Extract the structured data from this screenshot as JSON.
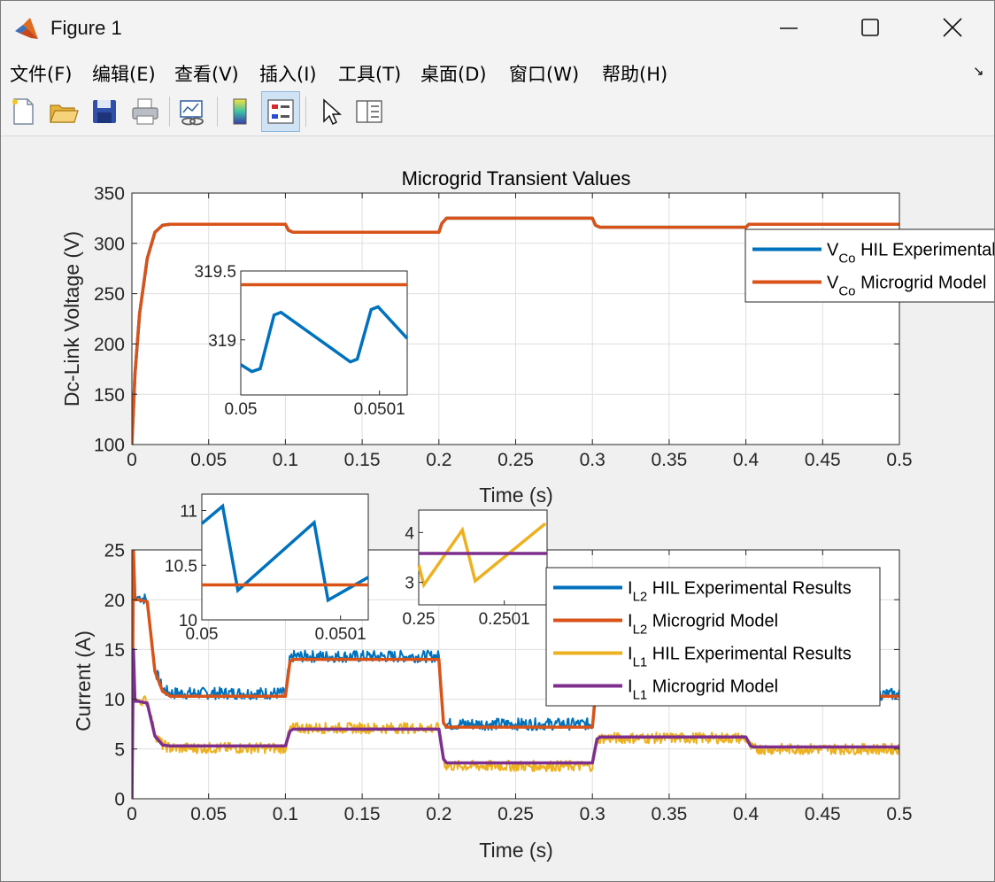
{
  "window": {
    "title": "Figure 1"
  },
  "menu": [
    "文件(F)",
    "编辑(E)",
    "查看(V)",
    "插入(I)",
    "工具(T)",
    "桌面(D)",
    "窗口(W)",
    "帮助(H)"
  ],
  "toolbar_icons": [
    "new-figure-icon",
    "open-file-icon",
    "save-icon",
    "print-icon",
    "link-plot-icon",
    "insert-colorbar-icon",
    "insert-legend-icon",
    "edit-plot-arrow-icon",
    "property-inspector-icon"
  ],
  "colors": {
    "blue": "#0072bd",
    "orange": "#d95319",
    "yellow": "#edb120",
    "purple": "#7e2f8e"
  },
  "chart_data": [
    {
      "type": "line",
      "title": "Microgrid Transient Values",
      "xlabel": "Time (s)",
      "ylabel": "Dc-Link Voltage (V)",
      "xlim": [
        0,
        0.5
      ],
      "ylim": [
        100,
        350
      ],
      "xticks": [
        0,
        0.05,
        0.1,
        0.15,
        0.2,
        0.25,
        0.3,
        0.35,
        0.4,
        0.45,
        0.5
      ],
      "xtick_labels": [
        "0",
        "0.05",
        "0.1",
        "0.15",
        "0.2",
        "0.25",
        "0.3",
        "0.35",
        "0.4",
        "0.45",
        "0.5"
      ],
      "yticks": [
        100,
        150,
        200,
        250,
        300,
        350
      ],
      "ytick_labels": [
        "100",
        "150",
        "200",
        "250",
        "300",
        "350"
      ],
      "grid": true,
      "series": [
        {
          "name": "V_Co HIL Experimental Results",
          "color": "#0072bd",
          "x": [
            0,
            0.002,
            0.005,
            0.01,
            0.015,
            0.02,
            0.025,
            0.03,
            0.05,
            0.1,
            0.102,
            0.105,
            0.15,
            0.2,
            0.202,
            0.205,
            0.25,
            0.3,
            0.302,
            0.305,
            0.35,
            0.4,
            0.402,
            0.405,
            0.45,
            0.5
          ],
          "y": [
            100,
            170,
            230,
            285,
            311,
            318,
            319,
            319,
            319,
            319,
            313,
            311,
            311,
            311,
            320,
            325,
            325,
            325,
            318,
            316,
            316,
            316,
            319,
            319,
            319,
            319
          ]
        },
        {
          "name": "V_Co Microgrid Model",
          "color": "#d95319",
          "x": [
            0,
            0.002,
            0.005,
            0.01,
            0.015,
            0.02,
            0.025,
            0.03,
            0.05,
            0.1,
            0.102,
            0.105,
            0.15,
            0.2,
            0.202,
            0.205,
            0.25,
            0.3,
            0.302,
            0.305,
            0.35,
            0.4,
            0.402,
            0.405,
            0.45,
            0.5
          ],
          "y": [
            100,
            170,
            230,
            285,
            311,
            318,
            319,
            319,
            319,
            319,
            313,
            311,
            311,
            311,
            320,
            325,
            325,
            325,
            318,
            316,
            316,
            316,
            319,
            319,
            319,
            319
          ]
        }
      ],
      "legend": {
        "location": "right",
        "entries": [
          {
            "main": "V",
            "sub": "Co",
            "rest": " HIL Experimental Results",
            "color": "#0072bd"
          },
          {
            "main": "V",
            "sub": "Co",
            "rest": " Microgrid Model",
            "color": "#d95319"
          }
        ]
      },
      "inset": {
        "xlim": [
          0.05,
          0.05012
        ],
        "ylim": [
          318.6,
          319.5
        ],
        "xtick_labels": [
          "0.05",
          "0.0501"
        ],
        "xticks": [
          0.05,
          0.0501
        ],
        "ytick_labels": [
          "319",
          "319.5"
        ],
        "yticks": [
          319,
          319.5
        ],
        "series": [
          {
            "name": "HIL",
            "color": "#0072bd",
            "x": [
              0.05,
              0.050008,
              0.050014,
              0.050024,
              0.050029,
              0.050079,
              0.050084,
              0.050094,
              0.050099,
              0.05012
            ],
            "y": [
              318.82,
              318.77,
              318.79,
              319.18,
              319.2,
              318.84,
              318.86,
              319.22,
              319.24,
              319.01
            ]
          },
          {
            "name": "Model",
            "color": "#d95319",
            "x": [
              0.05,
              0.05012
            ],
            "y": [
              319.4,
              319.4
            ]
          }
        ]
      }
    },
    {
      "type": "line",
      "xlabel": "Time (s)",
      "ylabel": "Current (A)",
      "xlim": [
        0,
        0.5
      ],
      "ylim": [
        0,
        25
      ],
      "xticks": [
        0,
        0.05,
        0.1,
        0.15,
        0.2,
        0.25,
        0.3,
        0.35,
        0.4,
        0.45,
        0.5
      ],
      "xtick_labels": [
        "0",
        "0.05",
        "0.1",
        "0.15",
        "0.2",
        "0.25",
        "0.3",
        "0.35",
        "0.4",
        "0.45",
        "0.5"
      ],
      "yticks": [
        0,
        5,
        10,
        15,
        20,
        25
      ],
      "ytick_labels": [
        "0",
        "5",
        "10",
        "15",
        "20",
        "25"
      ],
      "grid": true,
      "series": [
        {
          "name": "I_L2 HIL Experimental Results",
          "color": "#0072bd",
          "noise": 0.6,
          "x": [
            0,
            0.001,
            0.002,
            0.004,
            0.01,
            0.015,
            0.02,
            0.025,
            0.1,
            0.103,
            0.105,
            0.2,
            0.203,
            0.205,
            0.3,
            0.303,
            0.305,
            0.4,
            0.403,
            0.405,
            0.5
          ],
          "y": [
            0,
            25,
            20,
            20.3,
            20,
            13,
            11,
            10.6,
            10.6,
            14,
            14.3,
            14.3,
            8,
            7.5,
            7.5,
            12,
            12.4,
            12.4,
            10.5,
            10.5,
            10.5
          ]
        },
        {
          "name": "I_L2 Microgrid Model",
          "color": "#d95319",
          "x": [
            0,
            0.001,
            0.002,
            0.004,
            0.01,
            0.015,
            0.02,
            0.025,
            0.1,
            0.103,
            0.105,
            0.2,
            0.203,
            0.205,
            0.3,
            0.303,
            0.305,
            0.4,
            0.403,
            0.405,
            0.5
          ],
          "y": [
            0,
            25,
            20,
            20,
            19.8,
            12.8,
            10.8,
            10.3,
            10.3,
            13.8,
            14,
            14,
            7.6,
            7.2,
            7.2,
            12,
            12.2,
            12.2,
            10.4,
            10.3,
            10.3
          ]
        },
        {
          "name": "I_L1 HIL Experimental Results",
          "color": "#edb120",
          "noise": 0.55,
          "x": [
            0,
            0.001,
            0.002,
            0.004,
            0.01,
            0.015,
            0.02,
            0.025,
            0.1,
            0.103,
            0.105,
            0.2,
            0.203,
            0.205,
            0.3,
            0.303,
            0.305,
            0.4,
            0.403,
            0.405,
            0.5
          ],
          "y": [
            0,
            15,
            9.8,
            10,
            9.8,
            6.5,
            5.4,
            5.1,
            5.1,
            7,
            7.1,
            7.1,
            3.8,
            3.3,
            3.3,
            5.9,
            6.1,
            6.1,
            5.2,
            5,
            5
          ]
        },
        {
          "name": "I_L1 Microgrid Model",
          "color": "#7e2f8e",
          "x": [
            0,
            0.001,
            0.002,
            0.004,
            0.01,
            0.015,
            0.02,
            0.025,
            0.1,
            0.103,
            0.105,
            0.2,
            0.203,
            0.205,
            0.3,
            0.303,
            0.305,
            0.4,
            0.403,
            0.405,
            0.5
          ],
          "y": [
            0,
            15,
            9.8,
            9.8,
            9.6,
            6.3,
            5.4,
            5.3,
            5.3,
            6.8,
            7,
            7,
            4,
            3.6,
            3.6,
            6,
            6.2,
            6.2,
            5.3,
            5.2,
            5.2
          ]
        }
      ],
      "legend": {
        "location": "top-right",
        "entries": [
          {
            "main": "I",
            "sub": "L2",
            "rest": " HIL Experimental Results",
            "color": "#0072bd"
          },
          {
            "main": "I",
            "sub": "L2",
            "rest": " Microgrid Model",
            "color": "#d95319"
          },
          {
            "main": "I",
            "sub": "L1",
            "rest": " HIL Experimental Results",
            "color": "#edb120"
          },
          {
            "main": "I",
            "sub": "L1",
            "rest": " Microgrid Model",
            "color": "#7e2f8e"
          }
        ]
      },
      "insets": [
        {
          "xlim": [
            0.05,
            0.05012
          ],
          "ylim": [
            10,
            11.15
          ],
          "xticks": [
            0.05,
            0.0501
          ],
          "xtick_labels": [
            "0.05",
            "0.0501"
          ],
          "yticks": [
            10,
            10.5,
            11
          ],
          "ytick_labels": [
            "10",
            "10.5",
            "11"
          ],
          "series": [
            {
              "name": "HIL",
              "color": "#0072bd",
              "x": [
                0.05,
                0.050015,
                0.050026,
                0.050081,
                0.050091,
                0.05012
              ],
              "y": [
                10.88,
                11.04,
                10.27,
                10.89,
                10.18,
                10.39
              ]
            },
            {
              "name": "Model",
              "color": "#d95319",
              "x": [
                0.05,
                0.05012
              ],
              "y": [
                10.32,
                10.32
              ]
            }
          ]
        },
        {
          "xlim": [
            0.25,
            0.25015
          ],
          "ylim": [
            2.55,
            4.45
          ],
          "xticks": [
            0.25,
            0.2501
          ],
          "xtick_labels": [
            "0.25",
            "0.2501"
          ],
          "yticks": [
            3,
            4
          ],
          "ytick_labels": [
            "3",
            "4"
          ],
          "series": [
            {
              "name": "HIL",
              "color": "#edb120",
              "x": [
                0.25,
                0.250006,
                0.250051,
                0.250066,
                0.250148
              ],
              "y": [
                3.35,
                2.95,
                4.05,
                3.03,
                4.18
              ]
            },
            {
              "name": "Model",
              "color": "#7e2f8e",
              "x": [
                0.25,
                0.25015
              ],
              "y": [
                3.58,
                3.58
              ]
            }
          ]
        }
      ]
    }
  ]
}
